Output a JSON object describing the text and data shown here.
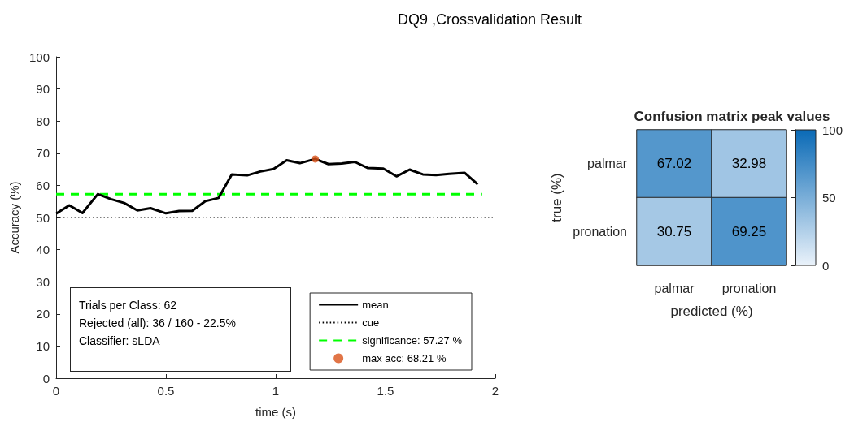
{
  "chart_data": [
    {
      "type": "line",
      "title": "DQ9 ,Crossvalidation Result",
      "xlabel": "time (s)",
      "ylabel": "Accuracy (%)",
      "xlim": [
        0,
        2
      ],
      "xticks": [
        0,
        0.5,
        1,
        1.5,
        2
      ],
      "ylim": [
        0,
        100
      ],
      "yticks": [
        0,
        10,
        20,
        30,
        40,
        50,
        60,
        70,
        80,
        90,
        100
      ],
      "grid": false,
      "legend": "bottom right",
      "marker": "none",
      "annotations": [
        "Trials per Class: 62",
        "Rejected (all): 36 / 160 - 22.5%",
        "Classifier: sLDA"
      ],
      "x": [
        0,
        0.06,
        0.12,
        0.19,
        0.25,
        0.31,
        0.37,
        0.43,
        0.5,
        0.56,
        0.62,
        0.68,
        0.74,
        0.8,
        0.87,
        0.93,
        0.99,
        1.05,
        1.11,
        1.18,
        1.24,
        1.3,
        1.36,
        1.42,
        1.49,
        1.55,
        1.61,
        1.67,
        1.73,
        1.79,
        1.86,
        1.92
      ],
      "series": [
        {
          "name": "mean",
          "color": "#000000",
          "values": [
            51.2,
            53.8,
            51.4,
            57.3,
            55.7,
            54.5,
            52.2,
            52.9,
            51.3,
            52.0,
            52.1,
            55.1,
            56.1,
            63.4,
            63.1,
            64.3,
            65.1,
            67.8,
            66.9,
            68.21,
            66.6,
            66.8,
            67.3,
            65.4,
            65.2,
            62.8,
            64.9,
            63.4,
            63.2,
            63.6,
            63.9,
            60.3
          ]
        },
        {
          "name": "cue",
          "color": "#000000",
          "x": [
            0,
            2
          ],
          "values": [
            50,
            50
          ],
          "line_style": "dotted"
        },
        {
          "name": "significance: 57.27 %",
          "color": "#00ff00",
          "x": [
            0,
            1.94
          ],
          "values": [
            57.27,
            57.27
          ],
          "line_style": "dashed"
        },
        {
          "name": "max acc: 68.21 %",
          "type": "scatter",
          "color": "#d95319",
          "x": [
            1.18
          ],
          "values": [
            68.21
          ],
          "marker": "circle"
        }
      ]
    },
    {
      "type": "heatmap",
      "title": "Confusion matrix peak values",
      "xlabel": "predicted (%)",
      "ylabel": "true (%)",
      "categories": [
        "palmar",
        "pronation"
      ],
      "y_categories": [
        "palmar",
        "pronation"
      ],
      "cells": [
        [
          67.02,
          32.98
        ],
        [
          30.75,
          69.25
        ]
      ],
      "clim": [
        0,
        100
      ],
      "cticks": [
        0,
        50,
        100
      ],
      "data_labels": true
    }
  ]
}
